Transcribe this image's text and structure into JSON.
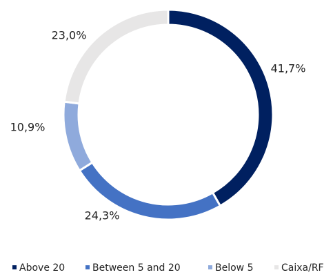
{
  "chart_data": {
    "type": "donut",
    "categories": [
      "Above 20",
      "Between 5 and 20",
      "Below 5",
      "Caixa/RF"
    ],
    "values": [
      41.7,
      24.3,
      10.9,
      23.0
    ],
    "value_labels": [
      "41,7%",
      "24,3%",
      "10,9%",
      "23,0%"
    ],
    "colors": [
      "#002060",
      "#4472c4",
      "#8faadc",
      "#e7e6e6"
    ],
    "legend": "bottom"
  }
}
